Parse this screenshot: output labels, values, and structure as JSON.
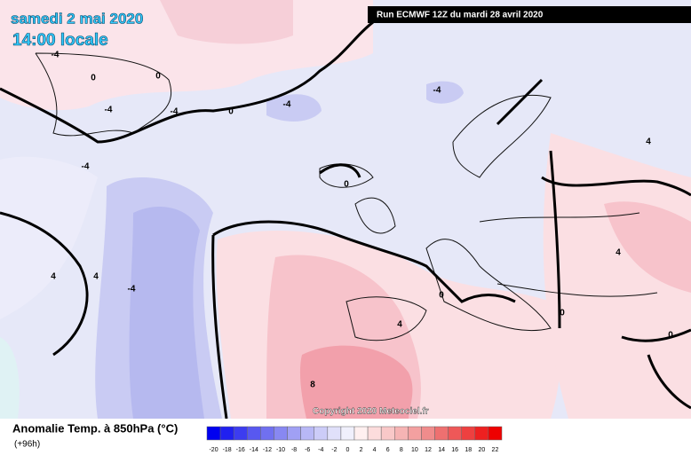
{
  "header": {
    "date": "samedi 2 mai 2020",
    "time": "14:00 locale",
    "run": "Run ECMWF 12Z du mardi 28 avril 2020"
  },
  "footer": {
    "title": "Anomalie Temp. à 850hPa (°C)",
    "lead": "(+96h)",
    "copyright": "Copyright 2020 Meteociel.fr"
  },
  "legend": {
    "labels": [
      -20,
      -18,
      -16,
      -14,
      -12,
      -10,
      -8,
      -6,
      -4,
      -2,
      0,
      2,
      4,
      6,
      8,
      10,
      12,
      14,
      16,
      18,
      20,
      22
    ],
    "colors": [
      "#0000f0",
      "#2020f0",
      "#3c3cf0",
      "#5858f0",
      "#7070f0",
      "#8888f2",
      "#a0a0f4",
      "#b8b8f6",
      "#ccccf8",
      "#e0e0fa",
      "#f0f0fc",
      "#fff0f0",
      "#fcdcdc",
      "#f9c8c8",
      "#f6b4b4",
      "#f3a0a0",
      "#f08c8c",
      "#ee7070",
      "#ee5858",
      "#ee4040",
      "#ee2020",
      "#ee0000"
    ]
  },
  "contour_labels": [
    -4,
    0,
    0,
    -4,
    -4,
    -4,
    0,
    -4,
    -4,
    0,
    4,
    4,
    -4,
    0,
    0,
    4,
    8,
    4,
    4,
    0
  ]
}
